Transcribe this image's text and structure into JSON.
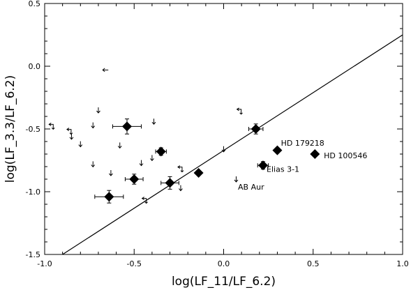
{
  "chart_data": {
    "type": "scatter",
    "xlabel": "log(LF_11/LF_6.2)",
    "ylabel": "log(LF_3.3/LF_6.2)",
    "xlim": [
      -1.0,
      1.0
    ],
    "ylim": [
      -1.5,
      0.5
    ],
    "xticks": [
      {
        "v": -1.0,
        "label": "-1.0"
      },
      {
        "v": -0.5,
        "label": "-0.5"
      },
      {
        "v": 0.0,
        "label": "0.0"
      },
      {
        "v": 0.5,
        "label": "0.5"
      },
      {
        "v": 1.0,
        "label": "1.0"
      }
    ],
    "yticks": [
      {
        "v": -1.5,
        "label": "-1.5"
      },
      {
        "v": -1.0,
        "label": "-1.0"
      },
      {
        "v": -0.5,
        "label": "-0.5"
      },
      {
        "v": 0.0,
        "label": "0.0"
      },
      {
        "v": 0.5,
        "label": "0.5"
      }
    ],
    "grid": false,
    "measurements": [
      {
        "x": -0.54,
        "y": -0.48,
        "xerr": 0.08,
        "yerr": 0.06
      },
      {
        "x": -0.35,
        "y": -0.68,
        "xerr": 0.03,
        "yerr": 0.03
      },
      {
        "x": -0.5,
        "y": -0.9,
        "xerr": 0.05,
        "yerr": 0.04
      },
      {
        "x": -0.3,
        "y": -0.93,
        "xerr": 0.05,
        "yerr": 0.05
      },
      {
        "x": -0.14,
        "y": -0.85,
        "xerr": 0.0,
        "yerr": 0.0
      },
      {
        "x": -0.64,
        "y": -1.04,
        "xerr": 0.08,
        "yerr": 0.05
      },
      {
        "x": 0.18,
        "y": -0.5,
        "xerr": 0.04,
        "yerr": 0.04
      },
      {
        "x": 0.22,
        "y": -0.79,
        "xerr": 0.03,
        "yerr": 0.03
      },
      {
        "x": 0.3,
        "y": -0.67,
        "xerr": 0.0,
        "yerr": 0.0
      },
      {
        "x": 0.51,
        "y": -0.7,
        "xerr": 0.0,
        "yerr": 0.0
      }
    ],
    "upper_limits": [
      {
        "x": -0.7,
        "y": -0.35
      },
      {
        "x": -0.73,
        "y": -0.47
      },
      {
        "x": -0.8,
        "y": -0.62
      },
      {
        "x": -0.85,
        "y": -0.56
      },
      {
        "x": -0.73,
        "y": -0.78
      },
      {
        "x": -0.63,
        "y": -0.85
      },
      {
        "x": -0.58,
        "y": -0.63
      },
      {
        "x": -0.39,
        "y": -0.44
      },
      {
        "x": -0.4,
        "y": -0.73
      },
      {
        "x": -0.46,
        "y": -0.77
      },
      {
        "x": -0.24,
        "y": -0.97
      },
      {
        "x": 0.0,
        "y": -0.66
      },
      {
        "x": 0.07,
        "y": -0.9
      }
    ],
    "left_limits": [
      {
        "x": -0.66,
        "y": -0.03
      }
    ],
    "double_limits": [
      {
        "x": -0.96,
        "y": -0.48
      },
      {
        "x": -0.86,
        "y": -0.52
      },
      {
        "x": -0.24,
        "y": -0.82
      },
      {
        "x": -0.44,
        "y": -1.07
      },
      {
        "x": 0.09,
        "y": -0.36
      }
    ],
    "fit_line": {
      "x": [
        -0.9,
        1.0
      ],
      "y": [
        -1.5,
        0.25
      ]
    },
    "annotations": [
      {
        "text": "HD 179218",
        "x": 0.32,
        "y": -0.61
      },
      {
        "text": "HD 100546",
        "x": 0.56,
        "y": -0.71
      },
      {
        "text": "Elias 3-1",
        "x": 0.24,
        "y": -0.82
      },
      {
        "text": "AB Aur",
        "x": 0.08,
        "y": -0.96
      }
    ]
  }
}
